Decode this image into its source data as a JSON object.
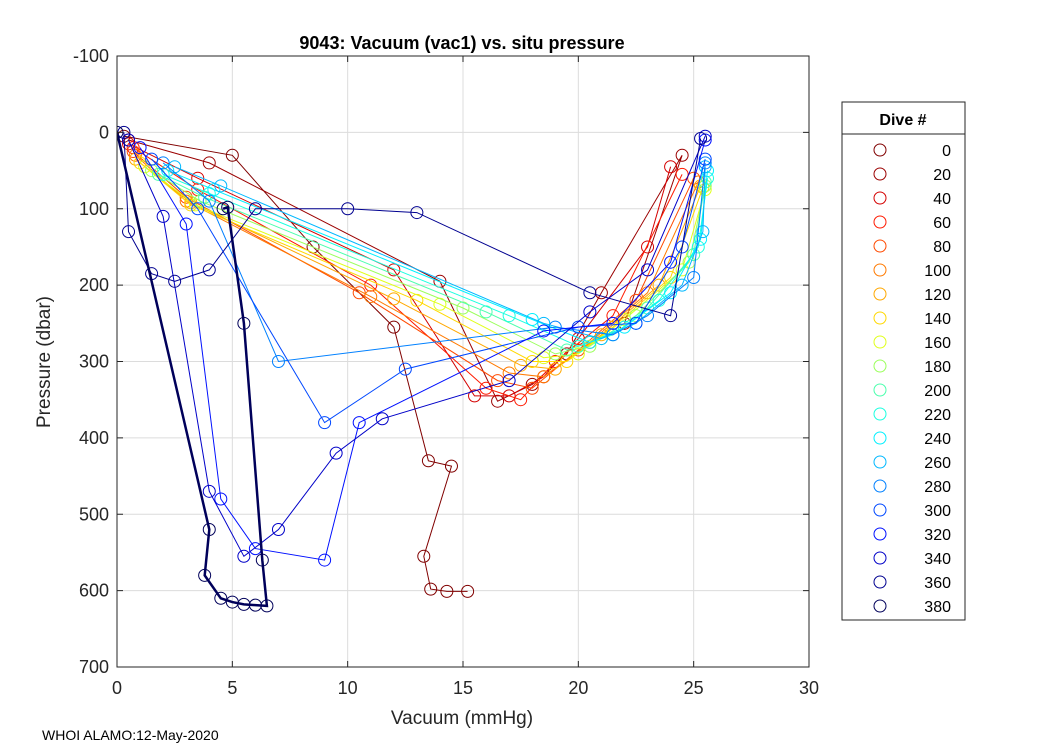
{
  "footer": "WHOI ALAMO:12-May-2020",
  "chart_data": {
    "type": "line",
    "title": "9043: Vacuum (vac1) vs. situ pressure",
    "xlabel": "Vacuum (mmHg)",
    "ylabel": "Pressure (dbar)",
    "xlim": [
      0,
      30
    ],
    "ylim": [
      -100,
      700
    ],
    "y_reversed": true,
    "xticks": [
      0,
      5,
      10,
      15,
      20,
      25,
      30
    ],
    "yticks": [
      -100,
      0,
      100,
      200,
      300,
      400,
      500,
      600,
      700
    ],
    "grid": true,
    "marker": "open-circle",
    "legend": {
      "title": "Dive #",
      "location": "outside-right",
      "entries": [
        {
          "label": "0",
          "color": "#800000"
        },
        {
          "label": "20",
          "color": "#9b0000"
        },
        {
          "label": "40",
          "color": "#d40000"
        },
        {
          "label": "60",
          "color": "#ff1a00"
        },
        {
          "label": "80",
          "color": "#ff4a00"
        },
        {
          "label": "100",
          "color": "#ff7a00"
        },
        {
          "label": "120",
          "color": "#ffa800"
        },
        {
          "label": "140",
          "color": "#ffd800"
        },
        {
          "label": "160",
          "color": "#e0ff1a"
        },
        {
          "label": "180",
          "color": "#9bff5c"
        },
        {
          "label": "200",
          "color": "#4bffad"
        },
        {
          "label": "220",
          "color": "#1affe0"
        },
        {
          "label": "240",
          "color": "#00f0ff"
        },
        {
          "label": "260",
          "color": "#00b8ff"
        },
        {
          "label": "280",
          "color": "#0080ff"
        },
        {
          "label": "300",
          "color": "#0048ff"
        },
        {
          "label": "320",
          "color": "#0010ff"
        },
        {
          "label": "340",
          "color": "#0000c8"
        },
        {
          "label": "360",
          "color": "#000090"
        },
        {
          "label": "380",
          "color": "#00005a"
        }
      ]
    },
    "series": [
      {
        "name": "0",
        "color": "#800000",
        "x": [
          0.3,
          5.0,
          8.5,
          12.0,
          13.5,
          14.5,
          13.3,
          13.6,
          14.3,
          15.2
        ],
        "y": [
          5,
          30,
          150,
          255,
          430,
          437,
          555,
          598,
          601,
          601
        ]
      },
      {
        "name": "20",
        "color": "#9b0000",
        "x": [
          0.5,
          4.0,
          14.0,
          16.5,
          18.0,
          19.5,
          21.0,
          24.5,
          22.0
        ],
        "y": [
          10,
          40,
          195,
          352,
          330,
          290,
          210,
          30,
          250
        ]
      },
      {
        "name": "40",
        "color": "#d40000",
        "x": [
          0.5,
          3.5,
          12.0,
          15.5,
          17.0,
          18.5,
          20.0,
          23.0,
          24.0
        ],
        "y": [
          15,
          60,
          180,
          345,
          345,
          320,
          270,
          150,
          45
        ]
      },
      {
        "name": "60",
        "color": "#ff1a00",
        "x": [
          0.7,
          3.5,
          11.0,
          16.0,
          17.5,
          19.0,
          21.5,
          24.5
        ],
        "y": [
          20,
          75,
          200,
          335,
          350,
          300,
          240,
          55
        ]
      },
      {
        "name": "80",
        "color": "#ff4a00",
        "x": [
          0.7,
          3.0,
          10.5,
          16.5,
          18.0,
          20.0,
          22.5,
          25.0
        ],
        "y": [
          25,
          85,
          210,
          325,
          335,
          285,
          220,
          60
        ]
      },
      {
        "name": "100",
        "color": "#ff7a00",
        "x": [
          0.8,
          3.0,
          11.0,
          17.0,
          18.5,
          20.5,
          23.0,
          25.2
        ],
        "y": [
          30,
          90,
          215,
          315,
          320,
          275,
          210,
          65
        ]
      },
      {
        "name": "120",
        "color": "#ffa800",
        "x": [
          0.8,
          3.2,
          12.0,
          17.5,
          19.0,
          21.0,
          23.5,
          25.3
        ],
        "y": [
          35,
          92,
          218,
          305,
          310,
          265,
          200,
          70
        ]
      },
      {
        "name": "140",
        "color": "#ffd800",
        "x": [
          1.0,
          3.2,
          13.0,
          18.0,
          19.5,
          21.5,
          24.0,
          25.4
        ],
        "y": [
          40,
          95,
          220,
          300,
          300,
          255,
          190,
          72
        ]
      },
      {
        "name": "160",
        "color": "#e0ff1a",
        "x": [
          1.2,
          3.4,
          14.0,
          18.5,
          20.0,
          22.0,
          24.5,
          25.5
        ],
        "y": [
          45,
          95,
          225,
          295,
          290,
          245,
          180,
          75
        ]
      },
      {
        "name": "180",
        "color": "#9bff5c",
        "x": [
          1.5,
          3.6,
          15.0,
          19.0,
          20.5,
          22.5,
          24.8,
          25.5
        ],
        "y": [
          50,
          90,
          230,
          290,
          280,
          240,
          170,
          70
        ]
      },
      {
        "name": "200",
        "color": "#4bffad",
        "x": [
          1.8,
          3.8,
          16.0,
          19.5,
          21.0,
          23.0,
          25.0,
          25.5
        ],
        "y": [
          55,
          85,
          235,
          285,
          270,
          230,
          160,
          65
        ]
      },
      {
        "name": "220",
        "color": "#1affe0",
        "x": [
          2.0,
          4.0,
          17.0,
          20.0,
          21.5,
          23.5,
          25.2,
          25.6
        ],
        "y": [
          55,
          80,
          240,
          280,
          265,
          220,
          150,
          60
        ]
      },
      {
        "name": "240",
        "color": "#00f0ff",
        "x": [
          2.2,
          4.2,
          18.0,
          20.5,
          22.0,
          24.0,
          25.3,
          25.6
        ],
        "y": [
          50,
          75,
          245,
          275,
          255,
          210,
          140,
          50
        ]
      },
      {
        "name": "260",
        "color": "#00b8ff",
        "x": [
          2.5,
          4.5,
          18.5,
          21.0,
          22.5,
          24.5,
          25.4,
          25.5
        ],
        "y": [
          45,
          70,
          250,
          270,
          250,
          200,
          130,
          45
        ]
      },
      {
        "name": "280",
        "color": "#0080ff",
        "x": [
          2.0,
          4.0,
          7.0,
          19.0,
          21.5,
          23.0,
          25.0,
          25.5
        ],
        "y": [
          40,
          90,
          300,
          255,
          265,
          240,
          190,
          40
        ]
      },
      {
        "name": "300",
        "color": "#0048ff",
        "x": [
          1.5,
          3.5,
          9.0,
          12.5,
          20.0,
          22.5,
          24.5,
          25.5
        ],
        "y": [
          35,
          100,
          380,
          310,
          255,
          250,
          150,
          35
        ]
      },
      {
        "name": "320",
        "color": "#0010ff",
        "x": [
          1.0,
          3.0,
          4.5,
          6.0,
          9.0,
          10.5,
          18.5,
          21.5,
          24.0,
          25.5
        ],
        "y": [
          20,
          120,
          480,
          545,
          560,
          380,
          260,
          250,
          170,
          10
        ]
      },
      {
        "name": "340",
        "color": "#0000c8",
        "x": [
          0.5,
          2.0,
          4.0,
          5.5,
          7.0,
          9.5,
          11.5,
          17.0,
          20.5,
          23.0,
          25.5
        ],
        "y": [
          10,
          110,
          470,
          555,
          520,
          420,
          375,
          325,
          235,
          180,
          5
        ]
      },
      {
        "name": "360",
        "color": "#000090",
        "x": [
          0.3,
          0.5,
          1.5,
          2.5,
          4.0,
          6.0,
          10.0,
          13.0,
          20.5,
          24.0,
          25.3
        ],
        "y": [
          0,
          130,
          185,
          195,
          180,
          100,
          100,
          105,
          210,
          240,
          8
        ]
      },
      {
        "name": "380",
        "color": "#00005a",
        "x": [
          0.0,
          4.0,
          3.8,
          4.5,
          5.0,
          5.5,
          6.0,
          6.5,
          6.3,
          5.5,
          4.8,
          4.6
        ],
        "y": [
          0,
          520,
          580,
          610,
          615,
          618,
          619,
          620,
          560,
          250,
          98,
          100
        ]
      }
    ]
  }
}
